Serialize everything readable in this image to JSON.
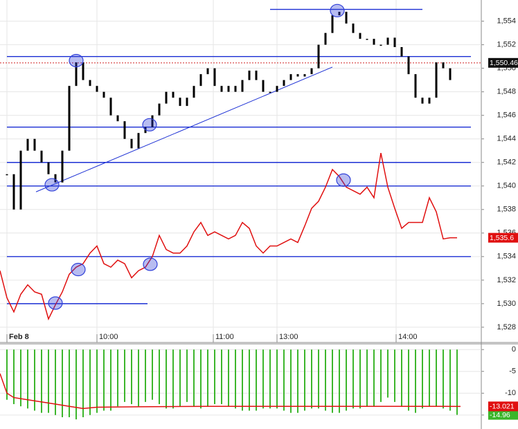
{
  "chart_data": [
    {
      "type": "candlestick",
      "xlim": [
        0,
        173.75
      ],
      "ylim": [
        1526.7,
        1555.8
      ],
      "xticks": [
        {
          "value": 2.5,
          "label": "Feb 8"
        },
        {
          "value": 35,
          "label": "10:00"
        },
        {
          "value": 77,
          "label": "11:00"
        },
        {
          "value": 100,
          "label": "13:00"
        },
        {
          "value": 143,
          "label": "14:00"
        }
      ],
      "yticks": [
        {
          "value": 1528,
          "label": "1,528"
        },
        {
          "value": 1530,
          "label": "1,530"
        },
        {
          "value": 1532,
          "label": "1,532"
        },
        {
          "value": 1534,
          "label": "1,534"
        },
        {
          "value": 1536,
          "label": "1,536"
        },
        {
          "value": 1538,
          "label": "1,538"
        },
        {
          "value": 1540,
          "label": "1,540"
        },
        {
          "value": 1542,
          "label": "1,542"
        },
        {
          "value": 1544,
          "label": "1,544"
        },
        {
          "value": 1546,
          "label": "1,546"
        },
        {
          "value": 1548,
          "label": "1,548"
        },
        {
          "value": 1550,
          "label": "1,550"
        },
        {
          "value": 1552,
          "label": "1,552"
        },
        {
          "value": 1554,
          "label": "1,554"
        }
      ],
      "grid": true,
      "series": [
        {
          "type": "candlestick",
          "color": "#000000",
          "x": [
            2.5,
            5,
            7.5,
            10,
            12.5,
            15,
            17.5,
            20,
            22.5,
            25,
            27.5,
            30,
            32.5,
            35,
            37.5,
            40,
            42.5,
            45,
            47.5,
            50,
            52.5,
            55,
            57.5,
            60,
            62.5,
            65,
            67.5,
            70,
            72.5,
            75,
            77.5,
            80,
            82.5,
            85,
            87.5,
            90,
            92.5,
            95,
            97.5,
            100,
            102.5,
            105,
            107.5,
            110,
            112.5,
            115,
            117.5,
            120,
            122.5,
            125,
            127.5,
            130,
            132.5,
            135,
            137.5,
            140,
            142.5,
            145,
            147.5,
            150,
            152.5,
            155,
            157.5,
            160,
            162.5
          ],
          "values": [
            1541,
            1538,
            1543,
            1544,
            1543,
            1542,
            1541,
            1540.3,
            1543,
            1548.5,
            1550.5,
            1549,
            1548.5,
            1548,
            1547.5,
            1546,
            1545.5,
            1544,
            1543.2,
            1544.5,
            1545,
            1546,
            1547,
            1548,
            1547.5,
            1546.8,
            1547.5,
            1548.5,
            1549.5,
            1550,
            1548.5,
            1548,
            1548.5,
            1548,
            1549,
            1549.8,
            1549,
            1548,
            1548,
            1548.5,
            1549,
            1549.5,
            1549.3,
            1549.5,
            1550,
            1552,
            1553,
            1554.5,
            1554.8,
            1553.8,
            1553,
            1552.5,
            1552.5,
            1552,
            1552,
            1552.6,
            1551.8,
            1551,
            1549.5,
            1547.5,
            1547,
            1547.5,
            1550.5,
            1550,
            1549
          ]
        },
        {
          "type": "line",
          "color": "#e01010",
          "x": [
            0,
            2.5,
            5,
            7.5,
            10,
            12.5,
            15,
            17.5,
            20,
            22.5,
            25,
            27.5,
            30,
            32.5,
            35,
            37.5,
            40,
            42.5,
            45,
            47.5,
            50,
            52.5,
            55,
            57.5,
            60,
            62.5,
            65,
            67.5,
            70,
            72.5,
            75,
            77.5,
            80,
            82.5,
            85,
            87.5,
            90,
            92.5,
            95,
            97.5,
            100,
            102.5,
            105,
            107.5,
            110,
            112.5,
            115,
            117.5,
            120,
            122.5,
            125,
            127.5,
            130,
            132.5,
            135,
            137.5,
            140,
            142.5,
            145,
            147.5,
            150,
            152.5,
            155,
            157.5,
            160,
            162.5,
            165
          ],
          "values": [
            1532.8,
            1530.5,
            1529.3,
            1530.8,
            1531.6,
            1531,
            1530.8,
            1528.7,
            1529.9,
            1531,
            1532.5,
            1533.1,
            1533.4,
            1534.3,
            1534.9,
            1533.4,
            1533.1,
            1533.7,
            1533.4,
            1532.2,
            1532.8,
            1533.1,
            1534,
            1535.8,
            1534.6,
            1534.3,
            1534.3,
            1534.9,
            1536.1,
            1536.9,
            1535.8,
            1536.1,
            1535.8,
            1535.5,
            1535.8,
            1536.9,
            1536.4,
            1534.9,
            1534.3,
            1534.9,
            1534.9,
            1535.2,
            1535.5,
            1535.2,
            1536.6,
            1538.1,
            1538.7,
            1539.9,
            1541.4,
            1540.8,
            1539.9,
            1539.6,
            1539.3,
            1539.9,
            1539,
            1542.8,
            1539.9,
            1538.1,
            1536.4,
            1536.9,
            1536.9,
            1536.9,
            1539,
            1537.8,
            1535.5,
            1535.6,
            1535.6
          ],
          "last_label": "1,535.6"
        }
      ],
      "price_line": {
        "value": 1550.46,
        "label": "1,550.46",
        "color": "#d02020"
      },
      "levels": {
        "color": "#1a2ed4",
        "values": [
          1555,
          1551,
          1545,
          1542,
          1540,
          1534,
          1530
        ],
        "x0": [
          97.5,
          2.5,
          2.5,
          2.5,
          2.5,
          2.5,
          2.5
        ],
        "x1": [
          152.5,
          170,
          170,
          170,
          170,
          170,
          53.25
        ]
      },
      "trendline": {
        "color": "#1a2ed4",
        "x": [
          13,
          120
        ],
        "y": [
          1539.5,
          1550.1
        ]
      },
      "markers": {
        "color": "#3040d8",
        "x": [
          27.5,
          54,
          18.75,
          121.75,
          124,
          28.25,
          54.25,
          20
        ],
        "y": [
          1550.65,
          1545.2,
          1540.1,
          1554.9,
          1540.5,
          1532.9,
          1533.35,
          1530.05
        ]
      }
    },
    {
      "type": "bar",
      "xlim": [
        0,
        173.75
      ],
      "ylim": [
        -18.2,
        1.3
      ],
      "yticks": [
        0,
        -5,
        -10,
        -15
      ],
      "grid": true,
      "series": [
        {
          "type": "bar",
          "color": "#3cb62b",
          "x": [
            2.5,
            5,
            7.5,
            10,
            12.5,
            15,
            17.5,
            20,
            22.5,
            25,
            27.5,
            30,
            32.5,
            35,
            37.5,
            40,
            42.5,
            45,
            47.5,
            50,
            52.5,
            55,
            57.5,
            60,
            62.5,
            65,
            67.5,
            70,
            72.5,
            75,
            77.5,
            80,
            82.5,
            85,
            87.5,
            90,
            92.5,
            95,
            97.5,
            100,
            102.5,
            105,
            107.5,
            110,
            112.5,
            115,
            117.5,
            120,
            122.5,
            125,
            127.5,
            130,
            132.5,
            135,
            137.5,
            140,
            142.5,
            145,
            147.5,
            150,
            152.5,
            155,
            157.5,
            160,
            162.5,
            165
          ],
          "values": [
            -11.5,
            -12.5,
            -13,
            -13.5,
            -14,
            -14.5,
            -14.5,
            -15,
            -15.5,
            -15.5,
            -16,
            -15.5,
            -15,
            -14.5,
            -14,
            -14,
            -13,
            -12,
            -12.5,
            -13,
            -12,
            -11.5,
            -12.5,
            -13.5,
            -13.5,
            -13,
            -12,
            -13,
            -13.5,
            -13,
            -12.5,
            -12.5,
            -13,
            -13.5,
            -14,
            -14,
            -14,
            -13.5,
            -13.5,
            -13.5,
            -14,
            -14.5,
            -14.5,
            -14,
            -13.5,
            -13.5,
            -14,
            -14.5,
            -14.5,
            -14,
            -13.5,
            -13.5,
            -13,
            -13,
            -12,
            -11,
            -12,
            -13,
            -14,
            -14.5,
            -13.5,
            -13,
            -13,
            -13.5,
            -14,
            -14.96
          ],
          "last_label": "-14.96"
        },
        {
          "type": "line",
          "color": "#e01010",
          "x": [
            0,
            2.5,
            5,
            10,
            15,
            20,
            25,
            30,
            35,
            50,
            75,
            100,
            125,
            150,
            166.25
          ],
          "values": [
            -5.5,
            -10,
            -11,
            -11.5,
            -12,
            -12.5,
            -13,
            -13.5,
            -13.2,
            -13.1,
            -13,
            -13,
            -13,
            -13,
            -13.021
          ],
          "last_label": "-13.021"
        }
      ]
    }
  ]
}
